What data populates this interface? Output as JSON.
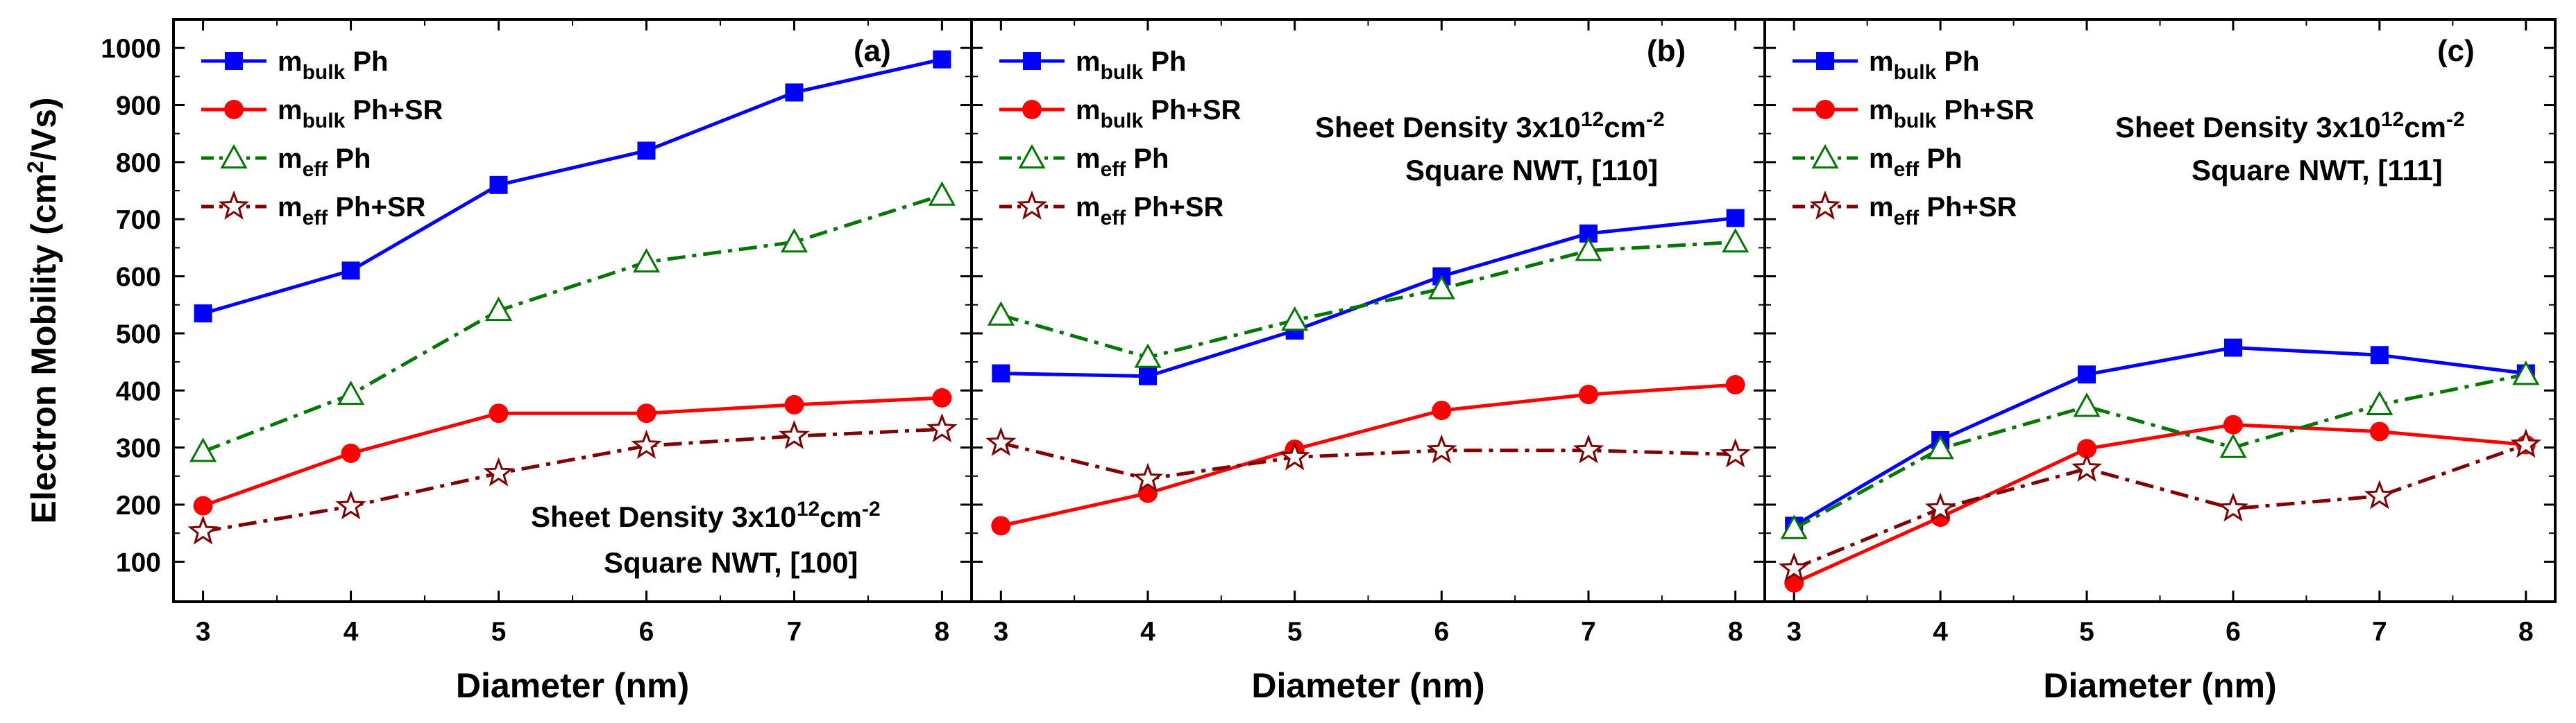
{
  "figure": {
    "y_axis_title": "Electron Mobility",
    "y_axis_unit_prefix": "(cm",
    "y_axis_unit_sup": "2",
    "y_axis_unit_suffix": "/Vs)",
    "y_ticks": [
      100,
      200,
      300,
      400,
      500,
      600,
      700,
      800,
      900,
      1000
    ],
    "ylim": [
      30,
      1050
    ],
    "x_ticks": [
      3,
      4,
      5,
      6,
      7,
      8
    ],
    "xlim": [
      2.8,
      8.2
    ],
    "colors": {
      "mbulk_ph": "#0000ff",
      "mbulk_phsr": "#ff0000",
      "meff_ph": "#007700",
      "meff_phsr": "#800000"
    }
  },
  "legend": [
    {
      "key": "mbulk_ph",
      "base": "m",
      "sub": "bulk",
      "suffix": " Ph"
    },
    {
      "key": "mbulk_phsr",
      "base": "m",
      "sub": "bulk",
      "suffix": " Ph+SR"
    },
    {
      "key": "meff_ph",
      "base": "m",
      "sub": "eff",
      "suffix": " Ph"
    },
    {
      "key": "meff_phsr",
      "base": "m",
      "sub": "eff",
      "suffix": " Ph+SR"
    }
  ],
  "chart_data": [
    {
      "type": "line",
      "panel_label": "(a)",
      "xlabel": "Diameter (nm)",
      "annotation": {
        "line1_prefix": "Sheet Density 3x10",
        "line1_sup": "12",
        "line1_suffix": "cm",
        "line1_sup2": "-2",
        "line2": "Square NWT, [100]"
      },
      "x": [
        3,
        4,
        5,
        6,
        7,
        8
      ],
      "series": [
        {
          "key": "mbulk_ph",
          "name": "m_bulk Ph",
          "values": [
            535,
            610,
            760,
            820,
            922,
            980
          ]
        },
        {
          "key": "mbulk_phsr",
          "name": "m_bulk Ph+SR",
          "values": [
            198,
            290,
            360,
            360,
            375,
            387
          ]
        },
        {
          "key": "meff_ph",
          "name": "m_eff Ph",
          "values": [
            293,
            393,
            540,
            625,
            660,
            742
          ]
        },
        {
          "key": "meff_phsr",
          "name": "m_eff Ph+SR",
          "values": [
            153,
            197,
            255,
            303,
            320,
            332
          ]
        }
      ]
    },
    {
      "type": "line",
      "panel_label": "(b)",
      "xlabel": "Diameter (nm)",
      "annotation": {
        "line1_prefix": "Sheet Density 3x10",
        "line1_sup": "12",
        "line1_suffix": "cm",
        "line1_sup2": "-2",
        "line2": "Square NWT, [110]"
      },
      "x": [
        3,
        4,
        5,
        6,
        7,
        8
      ],
      "series": [
        {
          "key": "mbulk_ph",
          "name": "m_bulk Ph",
          "values": [
            430,
            425,
            505,
            600,
            675,
            702
          ]
        },
        {
          "key": "mbulk_phsr",
          "name": "m_bulk Ph+SR",
          "values": [
            163,
            220,
            297,
            365,
            393,
            410
          ]
        },
        {
          "key": "meff_ph",
          "name": "m_eff Ph",
          "values": [
            532,
            458,
            523,
            578,
            645,
            660
          ]
        },
        {
          "key": "meff_phsr",
          "name": "m_eff Ph+SR",
          "values": [
            308,
            245,
            283,
            295,
            295,
            288
          ]
        }
      ]
    },
    {
      "type": "line",
      "panel_label": "(c)",
      "xlabel": "Diameter (nm)",
      "annotation": {
        "line1_prefix": "Sheet Density 3x10",
        "line1_sup": "12",
        "line1_suffix": "cm",
        "line1_sup2": "-2",
        "line2": "Square NWT, [111]"
      },
      "x": [
        3,
        4,
        5,
        6,
        7,
        8
      ],
      "series": [
        {
          "key": "mbulk_ph",
          "name": "m_bulk Ph",
          "values": [
            163,
            313,
            428,
            475,
            462,
            430
          ]
        },
        {
          "key": "mbulk_phsr",
          "name": "m_bulk Ph+SR",
          "values": [
            63,
            178,
            298,
            340,
            328,
            305
          ]
        },
        {
          "key": "meff_ph",
          "name": "m_eff Ph",
          "values": [
            158,
            298,
            372,
            300,
            375,
            428
          ]
        },
        {
          "key": "meff_phsr",
          "name": "m_eff Ph+SR",
          "values": [
            88,
            193,
            263,
            193,
            215,
            305
          ]
        }
      ]
    }
  ]
}
